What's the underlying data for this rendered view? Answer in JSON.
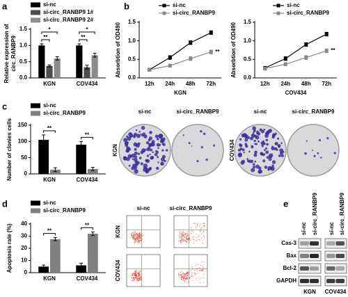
{
  "chart_data": [
    {
      "type": "bar",
      "label": "a",
      "ylabel": [
        "Relative expression of",
        "circ_RANBP9"
      ],
      "categories": [
        "KGN",
        "COV434"
      ],
      "series": [
        {
          "name": "si-nc",
          "color": "#000000",
          "values": [
            1.0,
            1.0
          ],
          "errors": [
            0.05,
            0.05
          ]
        },
        {
          "name": "si-circ_RANBP9 1#",
          "color": "#4d4d4d",
          "values": [
            0.37,
            0.33
          ],
          "errors": [
            0.03,
            0.06
          ]
        },
        {
          "name": "si-circ_RANBP9 2#",
          "color": "#8c8c8c",
          "values": [
            0.6,
            0.7
          ],
          "errors": [
            0.05,
            0.06
          ]
        }
      ],
      "ylim": [
        0,
        1.5
      ],
      "yticks": [
        {
          "value": 0,
          "label": "0.0"
        },
        0.5,
        {
          "value": 1,
          "label": "1.0"
        },
        1.5
      ],
      "significance": [
        [
          "**",
          "*"
        ],
        [
          "**",
          "*"
        ]
      ]
    },
    {
      "type": "line",
      "label": "b",
      "ylabel": "Absorbtion of OD490",
      "xlabel": "KGN",
      "categories": [
        "12h",
        "24h",
        "48h",
        "72h"
      ],
      "series": [
        {
          "name": "si-nc",
          "color": "#000000",
          "values": [
            0.22,
            0.55,
            0.95,
            1.22
          ],
          "errors": [
            0.04,
            0.05,
            0.05,
            0.05
          ]
        },
        {
          "name": "si-circ_RANBP9",
          "color": "#888888",
          "values": [
            0.22,
            0.33,
            0.52,
            0.7
          ],
          "errors": [
            0.04,
            0.04,
            0.05,
            0.05
          ]
        }
      ],
      "ylim": [
        0,
        1.5
      ],
      "yticks": [
        {
          "value": 0,
          "label": "0.0"
        },
        0.5,
        {
          "value": 1,
          "label": "1.0"
        },
        1.5
      ],
      "significance": "**"
    },
    {
      "type": "line",
      "ylabel": "Absorbtion of OD490",
      "xlabel": "COV434",
      "categories": [
        "12h",
        "24h",
        "48h",
        "72h"
      ],
      "series": [
        {
          "name": "si-nc",
          "color": "#000000",
          "values": [
            0.27,
            0.52,
            0.9,
            1.18
          ],
          "errors": [
            0.04,
            0.05,
            0.05,
            0.05
          ]
        },
        {
          "name": "si-circ_RANBP9",
          "color": "#888888",
          "values": [
            0.25,
            0.37,
            0.55,
            0.73
          ],
          "errors": [
            0.04,
            0.04,
            0.05,
            0.05
          ]
        }
      ],
      "ylim": [
        0,
        1.5
      ],
      "yticks": [
        {
          "value": 0,
          "label": "0.0"
        },
        0.5,
        {
          "value": 1,
          "label": "1.0"
        },
        1.5
      ],
      "significance": "**"
    },
    {
      "type": "bar",
      "label": "c",
      "ylabel": "Number of clonies cells",
      "categories": [
        "KGN",
        "COV434"
      ],
      "series": [
        {
          "name": "si-nc",
          "color": "#000000",
          "values": [
            105,
            90
          ],
          "errors": [
            15,
            10
          ]
        },
        {
          "name": "si-circ_RANBP9",
          "color": "#808080",
          "values": [
            13,
            15
          ],
          "errors": [
            6,
            5
          ]
        }
      ],
      "ylim": [
        0,
        150
      ],
      "yticks": [
        0,
        50,
        100,
        150
      ],
      "significance": [
        [
          "**"
        ],
        [
          "**"
        ]
      ]
    },
    {
      "type": "bar",
      "label": "d",
      "ylabel": "Apoptosis rate (%)",
      "categories": [
        "KGN",
        "COV434"
      ],
      "series": [
        {
          "name": "si-nc",
          "color": "#000000",
          "values": [
            5,
            6
          ],
          "errors": [
            1.2,
            1.8
          ]
        },
        {
          "name": "si-circ_RANBP9",
          "color": "#808080",
          "values": [
            27.5,
            32
          ],
          "errors": [
            1.3,
            1.5
          ]
        }
      ],
      "ylim": [
        0,
        40
      ],
      "yticks": [
        0,
        10,
        20,
        30,
        40
      ],
      "significance": [
        [
          "**"
        ],
        [
          "**"
        ]
      ]
    }
  ],
  "colony_assay": {
    "columns": [
      "si-nc",
      "si-circ_RANBP9",
      "si-nc",
      "si-circ_RANBP9"
    ],
    "rows": [
      "KGN",
      "COV434"
    ]
  },
  "flow_cytometry": {
    "columns": [
      "si-nc",
      "si-circ_RANBP9"
    ],
    "rows": [
      "KGN",
      "COV434"
    ]
  },
  "western_blot": {
    "label": "e",
    "lanes": [
      "si-nc",
      "si-circ_RANBP9",
      "si-nc",
      "si-circ_RANBP9"
    ],
    "proteins": [
      "Cas-3",
      "Bax",
      "Bcl-2",
      "GAPDH"
    ],
    "groups": [
      "KGN",
      "COV434"
    ]
  }
}
